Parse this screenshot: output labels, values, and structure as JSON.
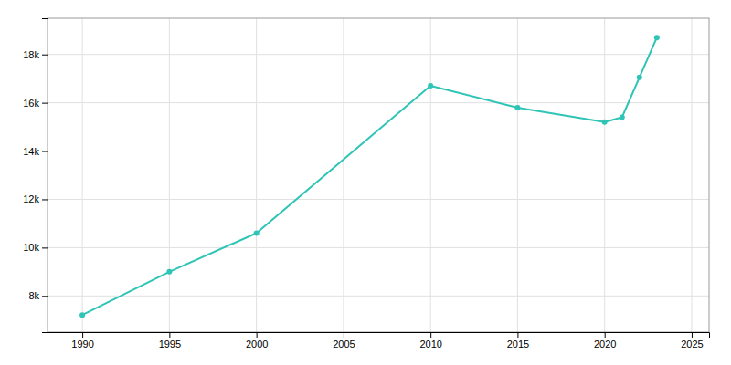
{
  "chart_data": {
    "type": "line",
    "x": [
      1990,
      1995,
      2000,
      2010,
      2015,
      2020,
      2021,
      2022,
      2023
    ],
    "values": [
      7210,
      9000,
      10600,
      16700,
      15800,
      15200,
      15400,
      17050,
      18700
    ],
    "color": "#2ec4b6",
    "marker": "circle",
    "xlim": [
      1988,
      2026
    ],
    "ylim": [
      6500,
      19500
    ],
    "xticks": [
      1990,
      1995,
      2000,
      2005,
      2010,
      2015,
      2020,
      2025
    ],
    "yticks": [
      {
        "value": 8000,
        "label": "8k"
      },
      {
        "value": 10000,
        "label": "10k"
      },
      {
        "value": 12000,
        "label": "12k"
      },
      {
        "value": 14000,
        "label": "14k"
      },
      {
        "value": 16000,
        "label": "16k"
      },
      {
        "value": 18000,
        "label": "18k"
      }
    ],
    "grid": true
  }
}
